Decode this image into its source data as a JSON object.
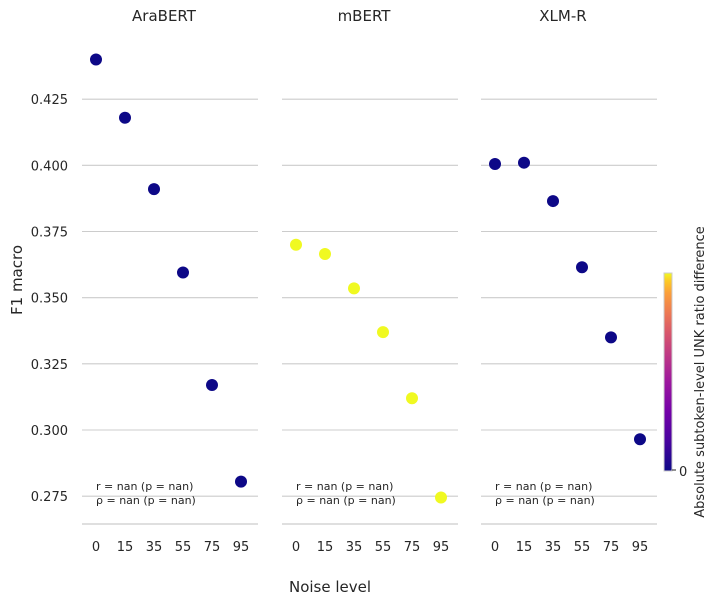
{
  "chart_data": {
    "type": "scatter",
    "xlabel": "Noise level",
    "ylabel": "F1 macro",
    "x_ticks": [
      0,
      15,
      35,
      55,
      75,
      95
    ],
    "y_ticks": [
      "0.275",
      "0.300",
      "0.325",
      "0.350",
      "0.375",
      "0.400",
      "0.425"
    ],
    "ylim": [
      0.266,
      0.45
    ],
    "grid": "horizontal",
    "colorbar": {
      "label": "Absolute subtoken-level UNK ratio difference",
      "tick": "0",
      "colormap": "plasma",
      "low_color": "#0d0887",
      "high_color": "#f0f921"
    },
    "panels": [
      {
        "title": "AraBERT",
        "color": "#0d0887",
        "x": [
          0,
          15,
          35,
          55,
          75,
          95
        ],
        "y": [
          0.44,
          0.418,
          0.391,
          0.3595,
          0.317,
          0.2805
        ],
        "annotation": [
          "r = nan (p = nan)",
          "ρ = nan (p = nan)"
        ]
      },
      {
        "title": "mBERT",
        "color": "#f0f921",
        "x": [
          0,
          15,
          35,
          55,
          75,
          95
        ],
        "y": [
          0.37,
          0.3665,
          0.3535,
          0.337,
          0.312,
          0.2745
        ],
        "annotation": [
          "r = nan (p = nan)",
          "ρ = nan (p = nan)"
        ]
      },
      {
        "title": "XLM-R",
        "color": "#0d0887",
        "x": [
          0,
          15,
          35,
          55,
          75,
          95
        ],
        "y": [
          0.4005,
          0.401,
          0.3865,
          0.3615,
          0.335,
          0.2965
        ],
        "annotation": [
          "r = nan (p = nan)",
          "ρ = nan (p = nan)"
        ]
      }
    ]
  }
}
